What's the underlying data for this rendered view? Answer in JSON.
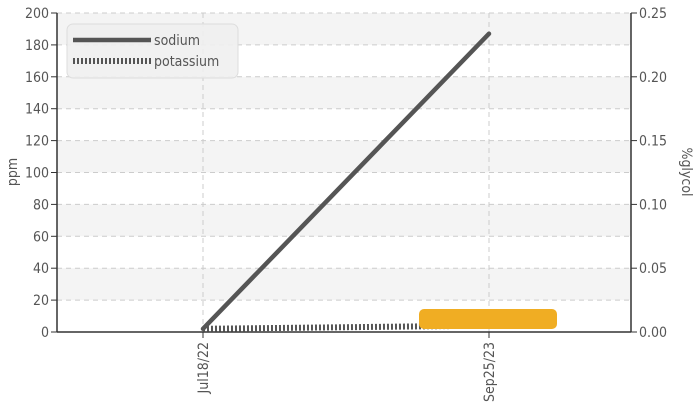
{
  "chart_data": {
    "type": "line",
    "x_dates": [
      "Jul18/22",
      "Sep25/23"
    ],
    "series": [
      {
        "name": "sodium",
        "axis": "left",
        "style": "solid",
        "points": [
          {
            "x": "Jul18/22",
            "y": 2
          },
          {
            "x": "Sep25/23",
            "y": 187
          }
        ]
      },
      {
        "name": "potassium",
        "axis": "left",
        "style": "dotted",
        "points": [
          {
            "x": "Jul18/22",
            "y": 2
          },
          {
            "x": "Sep25/23",
            "y": 4
          }
        ]
      }
    ],
    "highlight_bar": {
      "color": "#f0ad23"
    },
    "ylabel_left": "ppm",
    "ylabel_right": "%glycol",
    "ylim_left": [
      0,
      200
    ],
    "ylim_right": [
      0,
      0.25
    ],
    "yticks_left": [
      "0",
      "20",
      "40",
      "60",
      "80",
      "100",
      "120",
      "140",
      "160",
      "180",
      "200"
    ],
    "yticks_right": [
      "0.00",
      "0.05",
      "0.10",
      "0.15",
      "0.20",
      "0.25"
    ],
    "legend": {
      "position": "top-left",
      "entries": [
        "sodium",
        "potassium"
      ]
    },
    "grid": true,
    "colors": {
      "line": "#555555",
      "band": "#f4f4f4",
      "grid": "#cccccc"
    }
  }
}
